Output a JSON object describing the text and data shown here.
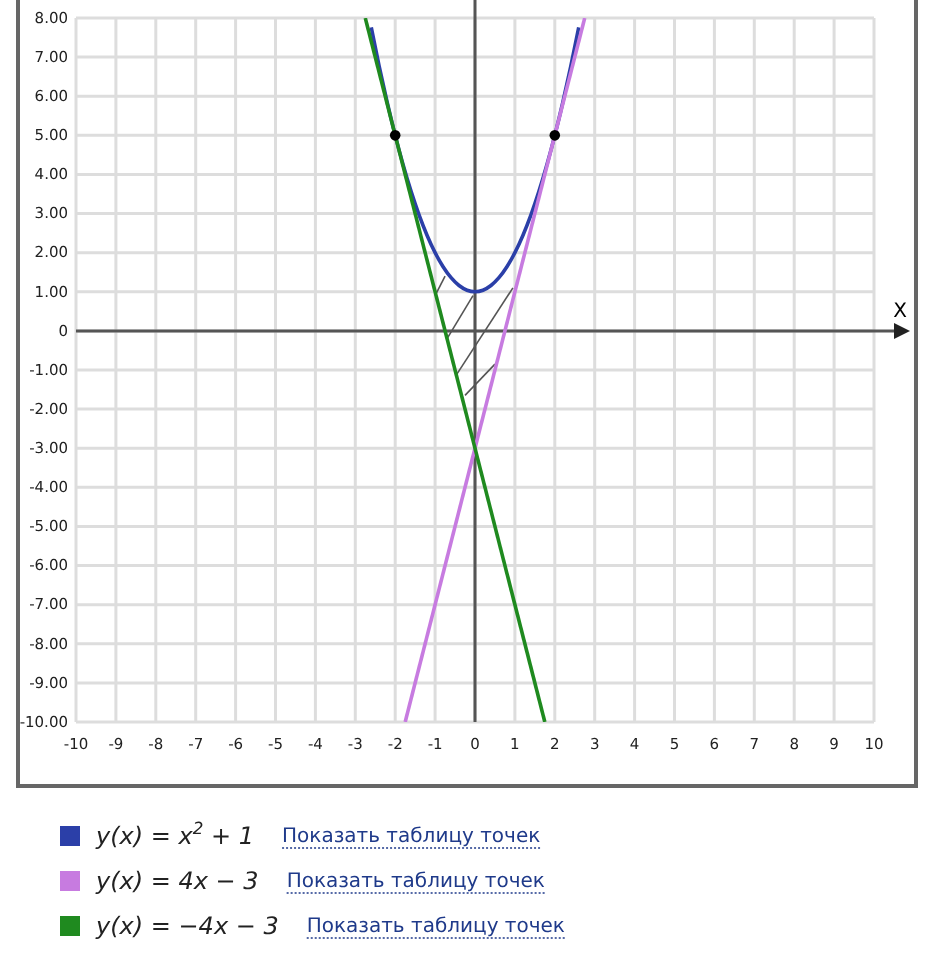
{
  "chart_data": {
    "type": "line",
    "xlabel": "X",
    "xlim": [
      -10,
      10
    ],
    "xticks": [
      -10,
      -9,
      -8,
      -7,
      -6,
      -5,
      -4,
      -3,
      -2,
      -1,
      0,
      1,
      2,
      3,
      4,
      5,
      6,
      7,
      8,
      9,
      10
    ],
    "ylim": [
      -10,
      8
    ],
    "yticks": [
      {
        "value": -10,
        "label": "-10.00"
      },
      {
        "value": -9,
        "label": "-9.00"
      },
      {
        "value": -8,
        "label": "-8.00"
      },
      {
        "value": -7,
        "label": "-7.00"
      },
      {
        "value": -6,
        "label": "-6.00"
      },
      {
        "value": -5,
        "label": "-5.00"
      },
      {
        "value": -4,
        "label": "-4.00"
      },
      {
        "value": -3,
        "label": "-3.00"
      },
      {
        "value": -2,
        "label": "-2.00"
      },
      {
        "value": -1,
        "label": "-1.00"
      },
      0,
      {
        "value": 1,
        "label": "1.00"
      },
      {
        "value": 2,
        "label": "2.00"
      },
      {
        "value": 3,
        "label": "3.00"
      },
      {
        "value": 4,
        "label": "4.00"
      },
      {
        "value": 5,
        "label": "5.00"
      },
      {
        "value": 6,
        "label": "6.00"
      },
      {
        "value": 7,
        "label": "7.00"
      },
      {
        "value": 8,
        "label": "8.00"
      }
    ],
    "grid": true,
    "legend": "bottom",
    "series": [
      {
        "name": "y(x) = x$^{2}$ + 1",
        "color": "#2b3fa8",
        "x": [
          -2.6,
          -2.4,
          -2.2,
          -2,
          -1.8,
          -1.6,
          -1.4,
          -1.2,
          -1,
          -0.8,
          -0.6,
          -0.4,
          -0.2,
          0,
          0.2,
          0.4,
          0.6,
          0.8,
          1,
          1.2,
          1.4,
          1.6,
          1.8,
          2,
          2.2,
          2.4,
          2.6
        ],
        "values": [
          7.76,
          6.76,
          5.84,
          5,
          4.24,
          3.56,
          2.96,
          2.44,
          2,
          1.64,
          1.36,
          1.16,
          1.04,
          1,
          1.04,
          1.16,
          1.36,
          1.64,
          2,
          2.44,
          2.96,
          3.56,
          4.24,
          5,
          5.84,
          6.76,
          7.76
        ]
      },
      {
        "name": "y(x) = 4x − 3",
        "color": "#c77be0",
        "x": [
          -1.75,
          2.75
        ],
        "values": [
          -10,
          8
        ]
      },
      {
        "name": "y(x) = −4x − 3",
        "color": "#1f8a1f",
        "x": [
          -2.75,
          1.75
        ],
        "values": [
          8,
          -10
        ]
      },
      {
        "type": "scatter",
        "marker": "circle",
        "color": "#000000",
        "x": [
          -2,
          2
        ],
        "values": [
          5,
          5
        ]
      }
    ],
    "annotations": [
      "Показать таблицу точек",
      "Показать таблицу точек",
      "Показать таблицу точек"
    ]
  }
}
